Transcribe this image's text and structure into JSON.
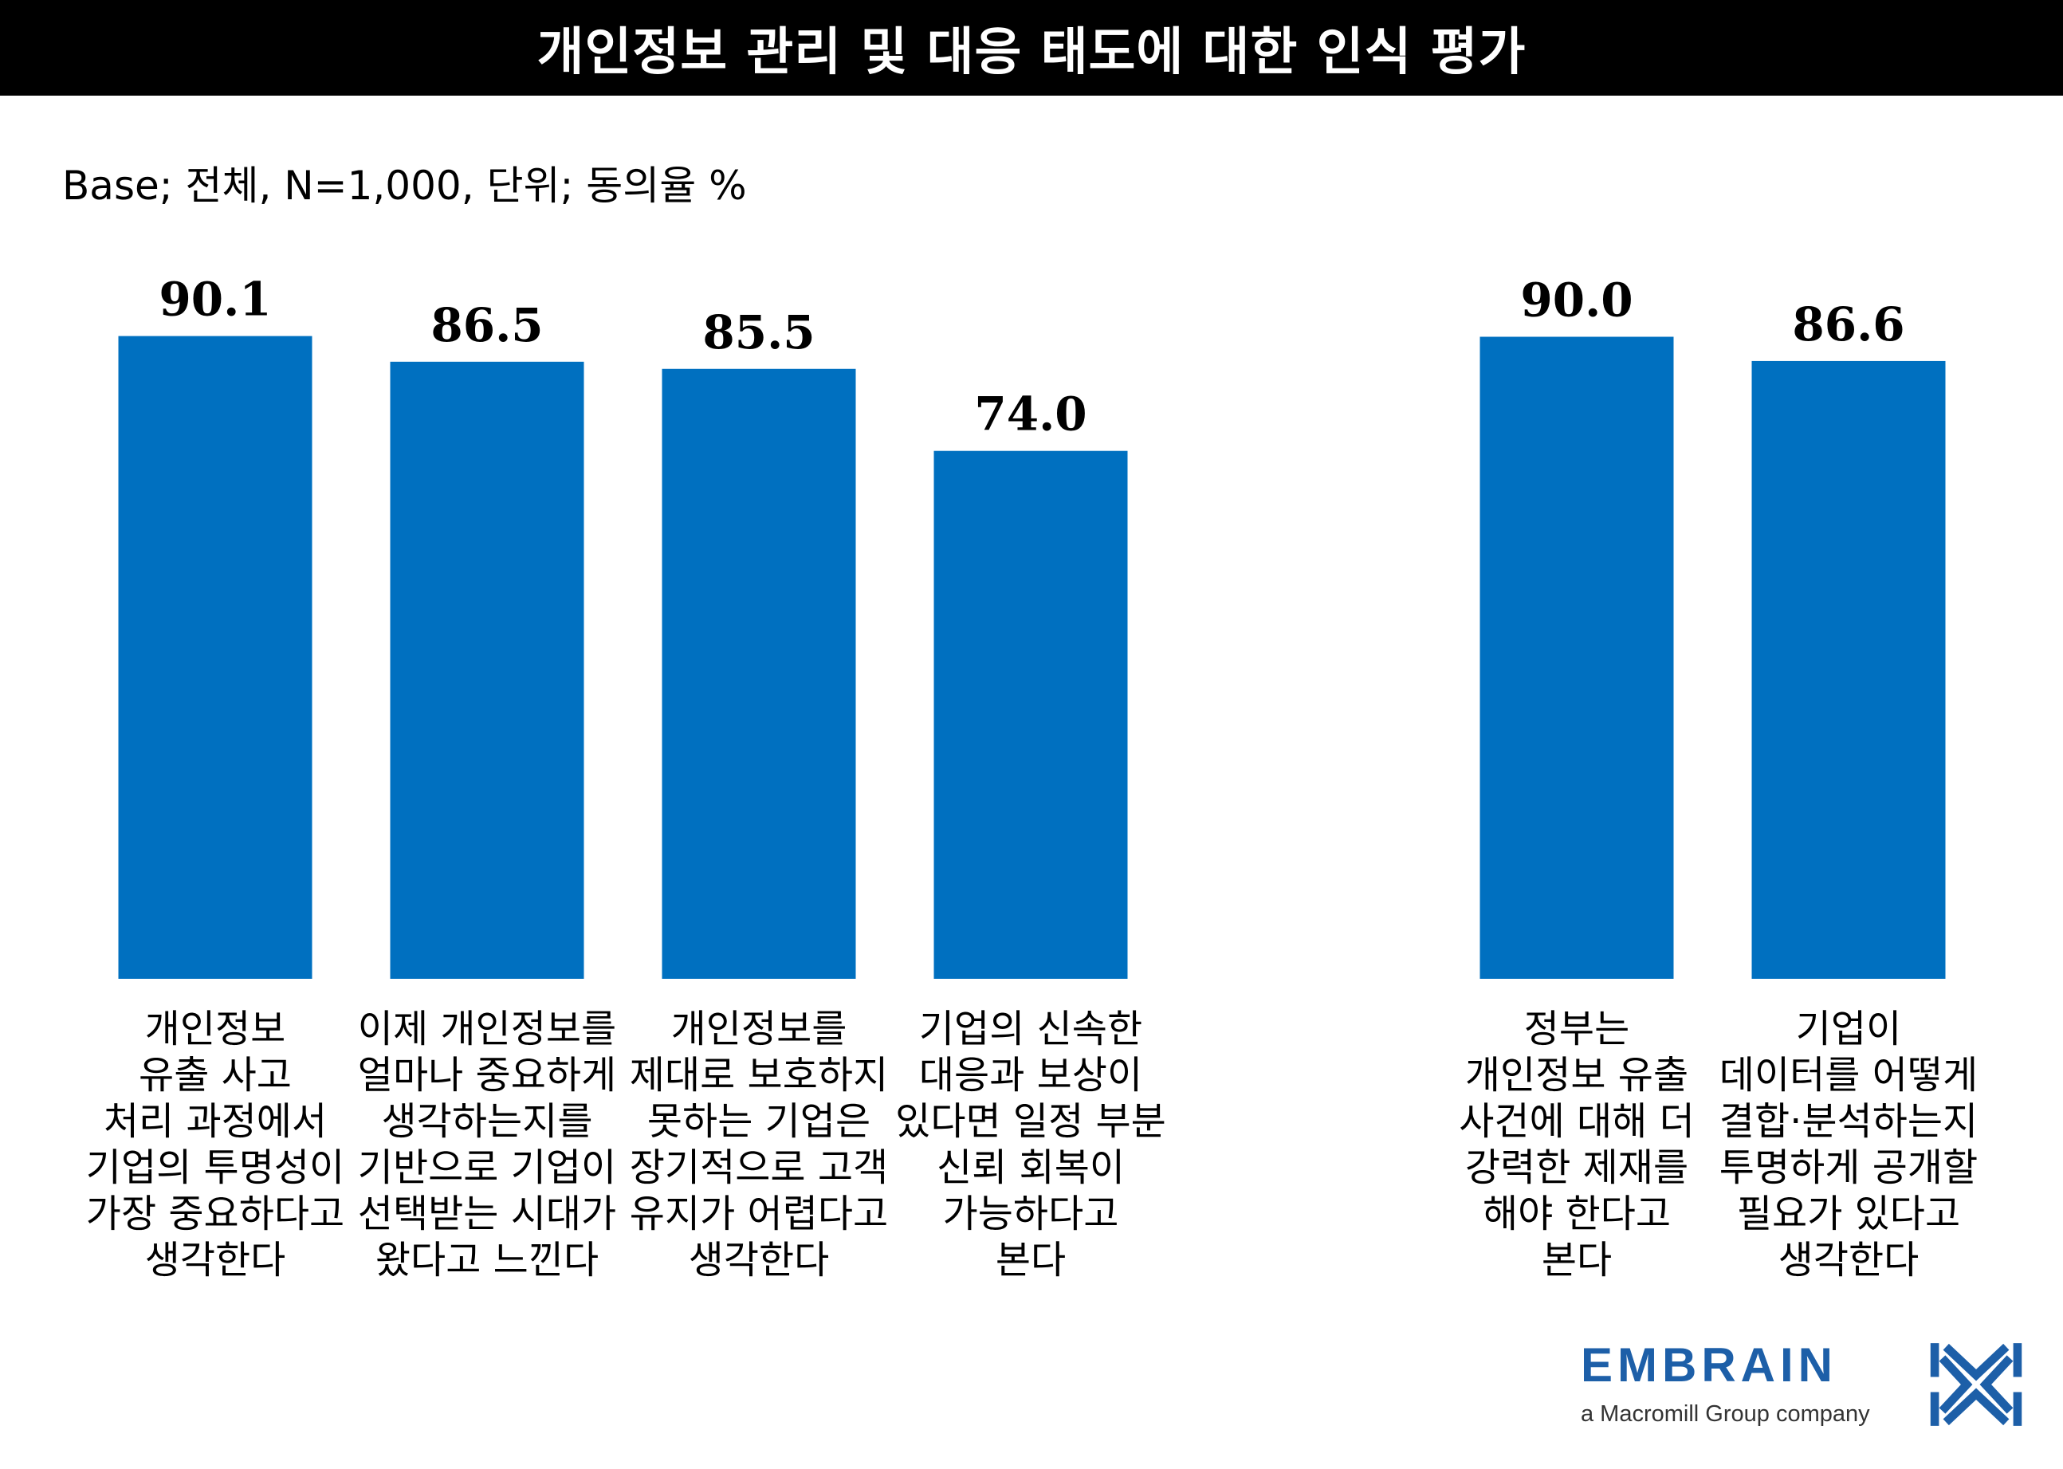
{
  "title": "개인정보 관리 및 대응 태도에 대한 인식 평가",
  "base_note": "Base; 전체, N=1,000, 단위; 동의율 %",
  "colors": {
    "bar": "#0070c0",
    "title_bg": "#000000",
    "logo": "#1d5fa8"
  },
  "chart_data": {
    "type": "bar",
    "title": "개인정보 관리 및 대응 태도에 대한 인식 평가",
    "ylabel": "동의율 %",
    "ylim": [
      0,
      100
    ],
    "grid": false,
    "categories": [
      "개인정보\n유출 사고\n처리 과정에서\n기업의 투명성이\n가장 중요하다고\n생각한다",
      "이제 개인정보를\n얼마나 중요하게\n생각하는지를\n기반으로 기업이\n선택받는 시대가\n왔다고 느낀다",
      "개인정보를\n제대로 보호하지\n못하는 기업은\n장기적으로 고객\n유지가 어렵다고\n생각한다",
      "기업의 신속한\n대응과 보상이\n있다면 일정 부분\n신뢰 회복이\n가능하다고\n본다",
      "정부는\n개인정보 유출\n사건에 대해 더\n강력한 제재를\n해야 한다고\n본다",
      "기업이\n데이터를 어떻게\n결합·분석하는지\n투명하게 공개할\n필요가 있다고\n생각한다"
    ],
    "values": [
      90.1,
      86.5,
      85.5,
      74.0,
      90.0,
      86.6
    ],
    "value_labels": [
      "90.1",
      "86.5",
      "85.5",
      "74.0",
      "90.0",
      "86.6"
    ],
    "groups": [
      [
        0,
        1,
        2,
        3
      ],
      [
        4,
        5
      ]
    ]
  },
  "logo": {
    "name": "EMBRAIN",
    "tagline": "a Macromill Group company"
  }
}
